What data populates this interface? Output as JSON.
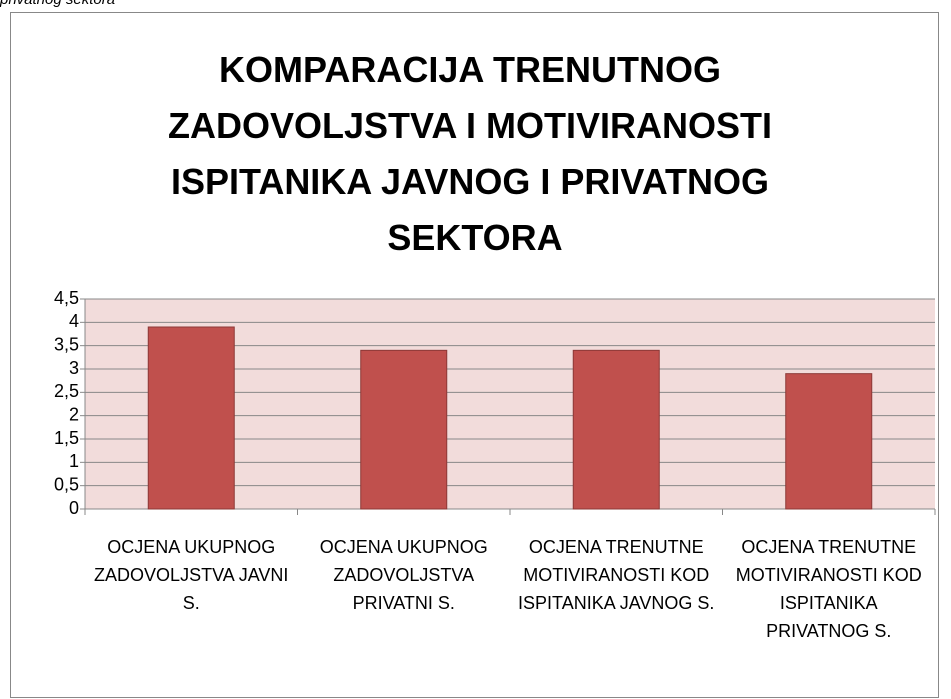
{
  "caption": "privatnog sektora",
  "chart_data": {
    "type": "bar",
    "title": "KOMPARACIJA  TRENUTNOG ZADOVOLJSTVA I MOTIVIRANOSTI ISPITANIKA JAVNOG I PRIVATNOG SEKTORA",
    "categories": [
      "OCJENA UKUPNOG ZADOVOLJSTVA JAVNI S.",
      "OCJENA UKUPNOG ZADOVOLJSTVA PRIVATNI S.",
      "OCJENA TRENUTNE MOTIVIRANOSTI KOD ISPITANIKA JAVNOG S.",
      "OCJENA TRENUTNE MOTIVIRANOSTI KOD ISPITANIKA PRIVATNOG S."
    ],
    "values": [
      3.9,
      3.4,
      3.4,
      2.9
    ],
    "color": "#c0504d",
    "ylim": [
      0,
      4.5
    ],
    "yticks": [
      0,
      {
        "value": 0.5,
        "label": "0,5"
      },
      1,
      {
        "value": 1.5,
        "label": "1,5"
      },
      2,
      {
        "value": 2.5,
        "label": "2,5"
      },
      3,
      {
        "value": 3.5,
        "label": "3,5"
      },
      4,
      {
        "value": 4.5,
        "label": "4,5"
      }
    ],
    "grid": true
  }
}
